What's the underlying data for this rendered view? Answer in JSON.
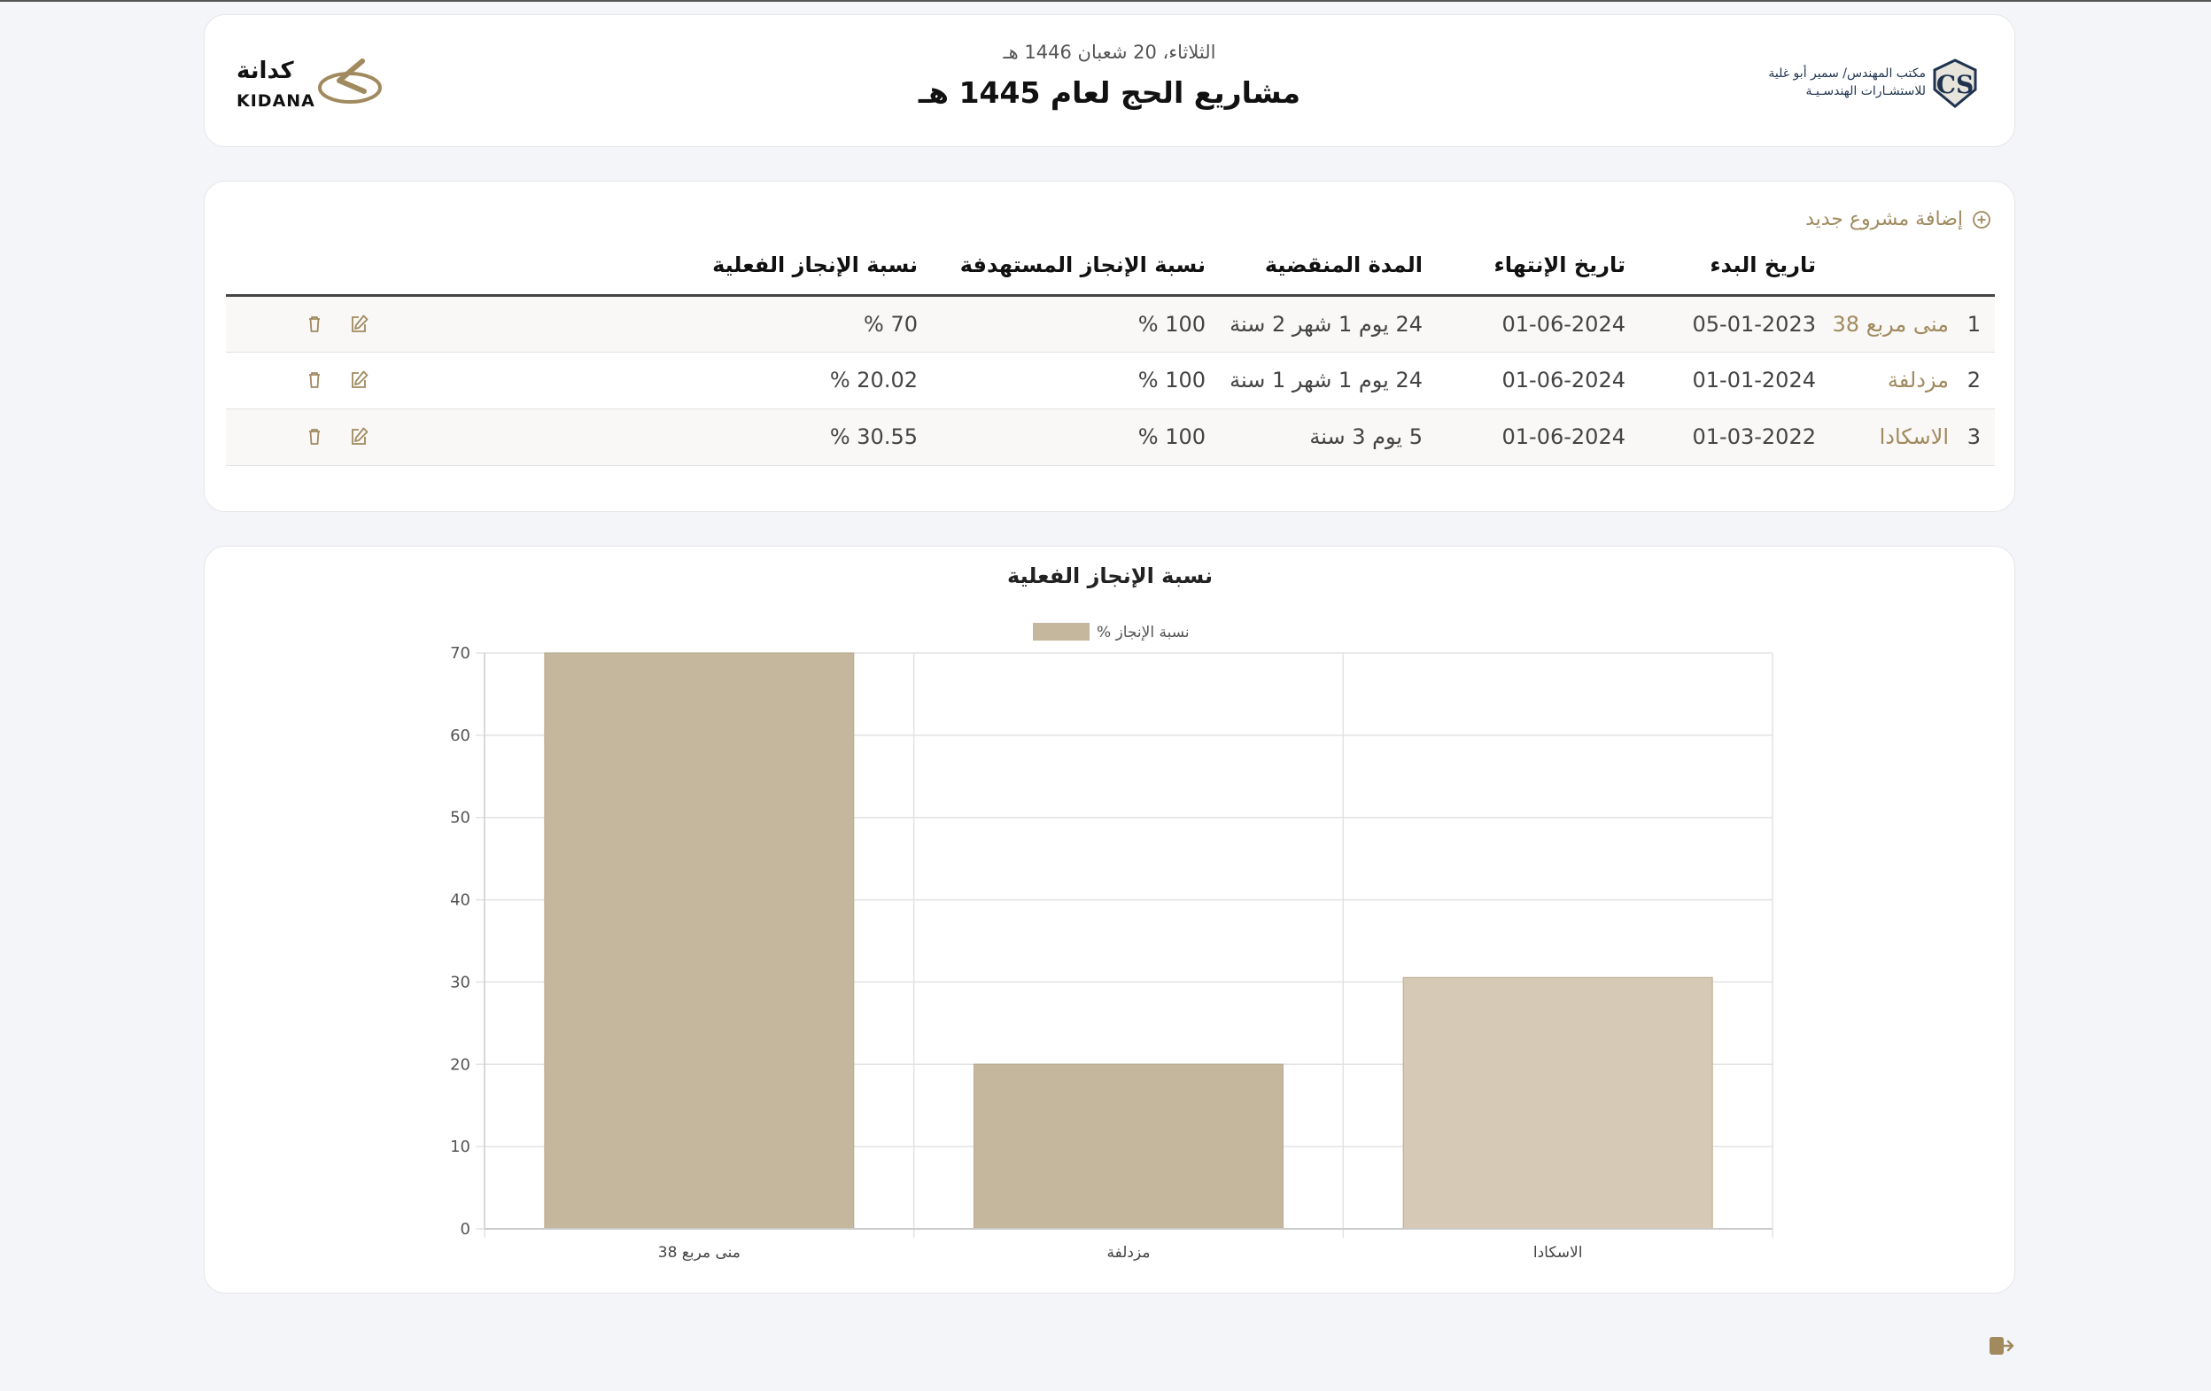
{
  "header": {
    "date": "الثلاثاء، 20 شعبان 1446 هـ",
    "title": "مشاريع الحج لعام 1445 هـ",
    "kidana_ar": "كدانة",
    "kidana_en": "KIDANA",
    "office_line1": "مكتب المهندس/ سمير أبو غلية",
    "office_line2": "للاستشـارات الهندسـيـة",
    "office_monogram": "CS"
  },
  "table": {
    "add_label": "إضافة مشروع جديد",
    "headers": {
      "num": "",
      "name": "",
      "start": "تاريخ البدء",
      "end": "تاريخ الإنتهاء",
      "duration": "المدة المنقضية",
      "target": "نسبة الإنجاز المستهدفة",
      "actual": "نسبة الإنجاز الفعلية"
    },
    "rows": [
      {
        "num": "1",
        "name": "منى مربع 38",
        "start": "05-01-2023",
        "end": "01-06-2024",
        "duration": "24 يوم 1 شهر 2 سنة",
        "target": "100 %",
        "actual": "70 %"
      },
      {
        "num": "2",
        "name": "مزدلفة",
        "start": "01-01-2024",
        "end": "01-06-2024",
        "duration": "24 يوم 1 شهر 1 سنة",
        "target": "100 %",
        "actual": "20.02 %"
      },
      {
        "num": "3",
        "name": "الاسكادا",
        "start": "01-03-2022",
        "end": "01-06-2024",
        "duration": "5 يوم 3 سنة",
        "target": "100 %",
        "actual": "30.55 %"
      }
    ]
  },
  "icons": {
    "add": "plus-circle-icon",
    "edit": "edit-icon",
    "delete": "trash-icon",
    "logout": "logout-icon"
  },
  "colors": {
    "accent": "#a08a5e",
    "bar": "#c5b79d",
    "bar_light": "#d6cab6"
  },
  "chart_data": {
    "type": "bar",
    "title": "نسبة الإنجاز الفعلية",
    "legend": "% نسبة الإنجاز",
    "legend_position": "top",
    "categories": [
      "منى مربع 38",
      "مزدلفة",
      "الاسكادا"
    ],
    "series": [
      {
        "name": "% نسبة الإنجاز",
        "values": [
          70,
          20.02,
          30.55
        ]
      }
    ],
    "ylim": [
      0,
      70
    ],
    "yticks": [
      0,
      10,
      20,
      30,
      40,
      50,
      60,
      70
    ],
    "grid": true
  }
}
